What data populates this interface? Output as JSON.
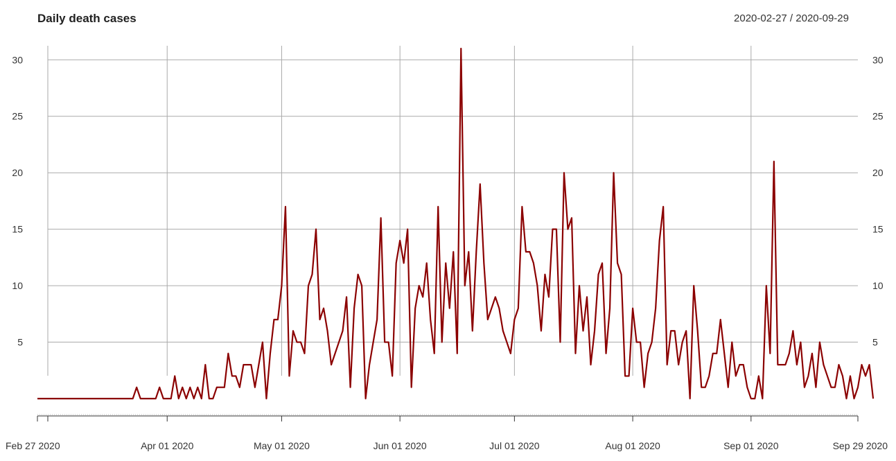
{
  "chart_data": {
    "type": "line",
    "title": "Daily death cases",
    "date_range": "2020-02-27 / 2020-09-29",
    "start_date": "2020-02-27",
    "end_date": "2020-09-29",
    "ylim": [
      0,
      31
    ],
    "y_ticks": [
      5,
      10,
      15,
      20,
      25,
      30
    ],
    "x_ticks": [
      {
        "date": "2020-02-27",
        "label": "Feb 27 2020"
      },
      {
        "date": "2020-04-01",
        "label": "Apr 01 2020"
      },
      {
        "date": "2020-05-01",
        "label": "May 01 2020"
      },
      {
        "date": "2020-06-01",
        "label": "Jun 01 2020"
      },
      {
        "date": "2020-07-01",
        "label": "Jul 01 2020"
      },
      {
        "date": "2020-08-01",
        "label": "Aug 01 2020"
      },
      {
        "date": "2020-09-01",
        "label": "Sep 01 2020"
      },
      {
        "date": "2020-09-29",
        "label": "Sep 29 2020"
      }
    ],
    "grid": true,
    "line_color": "#8B0000",
    "grid_color": "#aaaaaa",
    "series": [
      {
        "values": [
          0,
          0,
          0,
          0,
          0,
          0,
          0,
          0,
          0,
          0,
          0,
          0,
          0,
          0,
          0,
          0,
          0,
          0,
          0,
          0,
          0,
          0,
          0,
          0,
          0,
          0,
          1,
          0,
          0,
          0,
          0,
          0,
          1,
          0,
          0,
          0,
          2,
          0,
          1,
          0,
          1,
          0,
          1,
          0,
          3,
          0,
          0,
          1,
          1,
          1,
          4,
          2,
          2,
          1,
          3,
          3,
          3,
          1,
          3,
          5,
          0,
          4,
          7,
          7,
          10,
          17,
          2,
          6,
          5,
          5,
          4,
          10,
          11,
          15,
          7,
          8,
          6,
          3,
          4,
          5,
          6,
          9,
          1,
          8,
          11,
          10,
          0,
          3,
          5,
          7,
          16,
          5,
          5,
          2,
          12,
          14,
          12,
          15,
          1,
          8,
          10,
          9,
          12,
          7,
          4,
          17,
          5,
          12,
          8,
          13,
          4,
          31,
          10,
          13,
          6,
          13,
          19,
          12,
          7,
          8,
          9,
          8,
          6,
          5,
          4,
          7,
          8,
          17,
          13,
          13,
          12,
          10,
          6,
          11,
          9,
          15,
          15,
          5,
          20,
          15,
          16,
          4,
          10,
          6,
          9,
          3,
          6,
          11,
          12,
          4,
          8,
          20,
          12,
          11,
          2,
          2,
          8,
          5,
          5,
          1,
          4,
          5,
          8,
          14,
          17,
          3,
          6,
          6,
          3,
          5,
          6,
          0,
          10,
          6,
          1,
          1,
          2,
          4,
          4,
          7,
          4,
          1,
          5,
          2,
          3,
          3,
          1,
          0,
          0,
          2,
          0,
          10,
          4,
          21,
          3,
          3,
          3,
          4,
          6,
          3,
          5,
          1,
          2,
          4,
          1,
          5,
          3,
          2,
          1,
          1,
          3,
          2,
          0,
          2,
          0,
          1,
          3,
          2,
          3,
          0
        ]
      }
    ]
  }
}
